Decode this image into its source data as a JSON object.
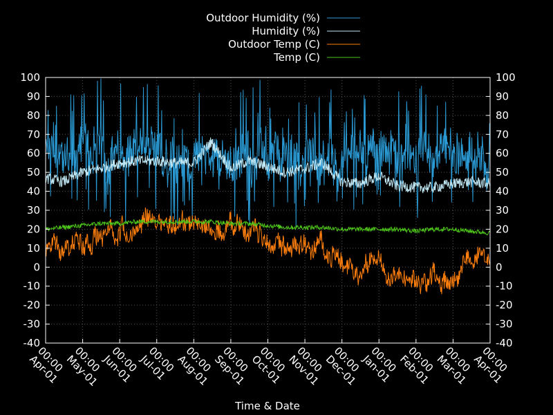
{
  "chart_data": {
    "type": "line",
    "xlabel": "Time & Date",
    "ylim": [
      -40,
      100
    ],
    "y_ticks": [
      -40,
      -30,
      -20,
      -10,
      0,
      10,
      20,
      30,
      40,
      50,
      60,
      70,
      80,
      90,
      100
    ],
    "y2_ticks": [
      -40,
      -30,
      -20,
      -10,
      0,
      10,
      20,
      30,
      40,
      50,
      60,
      70,
      80,
      90,
      100
    ],
    "x_ticks": [
      {
        "date": "Apr-01",
        "time": "00:00"
      },
      {
        "date": "May-01",
        "time": "00:00"
      },
      {
        "date": "Jun-01",
        "time": "00:00"
      },
      {
        "date": "Jul-01",
        "time": "00:00"
      },
      {
        "date": "Aug-01",
        "time": "00:00"
      },
      {
        "date": "Sep-01",
        "time": "00:00"
      },
      {
        "date": "Oct-01",
        "time": "00:00"
      },
      {
        "date": "Nov-01",
        "time": "00:00"
      },
      {
        "date": "Dec-01",
        "time": "00:00"
      },
      {
        "date": "Jan-01",
        "time": "00:00"
      },
      {
        "date": "Feb-01",
        "time": "00:00"
      },
      {
        "date": "Mar-01",
        "time": "00:00"
      },
      {
        "date": "Apr-01",
        "time": "00:00"
      }
    ],
    "grid": true,
    "legend_position": "top-center",
    "background": "#000000",
    "series": [
      {
        "name": "Outdoor Humidity (%)",
        "color": "#2b9bd6",
        "x": [
          "Apr-01",
          "Apr-15",
          "May-01",
          "May-15",
          "Jun-01",
          "Jun-15",
          "Jul-01",
          "Jul-15",
          "Aug-01",
          "Aug-15",
          "Sep-01",
          "Sep-15",
          "Oct-01",
          "Oct-15",
          "Nov-01",
          "Nov-15",
          "Dec-01",
          "Dec-15",
          "Jan-01",
          "Jan-15",
          "Feb-01",
          "Feb-15",
          "Mar-01",
          "Mar-15",
          "Apr-01"
        ],
        "values": [
          60,
          55,
          62,
          58,
          60,
          62,
          58,
          60,
          57,
          58,
          55,
          60,
          62,
          58,
          57,
          55,
          55,
          60,
          62,
          60,
          58,
          60,
          57,
          55,
          55
        ],
        "range": [
          [
            25,
            98
          ],
          [
            28,
            100
          ],
          [
            25,
            98
          ],
          [
            22,
            100
          ],
          [
            24,
            100
          ],
          [
            22,
            98
          ],
          [
            20,
            98
          ],
          [
            20,
            100
          ],
          [
            22,
            98
          ],
          [
            40,
            85
          ],
          [
            22,
            98
          ],
          [
            20,
            100
          ],
          [
            22,
            100
          ],
          [
            20,
            98
          ],
          [
            22,
            100
          ],
          [
            25,
            95
          ],
          [
            30,
            100
          ],
          [
            28,
            98
          ],
          [
            30,
            100
          ],
          [
            28,
            95
          ],
          [
            25,
            98
          ],
          [
            27,
            95
          ],
          [
            28,
            95
          ],
          [
            28,
            80
          ],
          [
            25,
            80
          ]
        ]
      },
      {
        "name": "Humidity (%)",
        "color": "#bfe6f2",
        "x": [
          "Apr-01",
          "Apr-15",
          "May-01",
          "May-15",
          "Jun-01",
          "Jun-15",
          "Jul-01",
          "Jul-15",
          "Aug-01",
          "Aug-15",
          "Sep-01",
          "Sep-15",
          "Oct-01",
          "Oct-15",
          "Nov-01",
          "Nov-15",
          "Dec-01",
          "Dec-15",
          "Jan-01",
          "Jan-15",
          "Feb-01",
          "Feb-15",
          "Mar-01",
          "Mar-15",
          "Apr-01"
        ],
        "values": [
          47,
          45,
          50,
          52,
          55,
          56,
          56,
          55,
          55,
          66,
          52,
          56,
          53,
          50,
          52,
          55,
          45,
          44,
          48,
          43,
          42,
          42,
          44,
          45,
          44
        ]
      },
      {
        "name": "Outdoor Temp (C)",
        "color": "#ff7f0e",
        "x": [
          "Apr-01",
          "Apr-15",
          "May-01",
          "May-15",
          "Jun-01",
          "Jun-15",
          "Jul-01",
          "Jul-15",
          "Aug-01",
          "Aug-15",
          "Sep-01",
          "Sep-15",
          "Oct-01",
          "Oct-15",
          "Nov-01",
          "Nov-15",
          "Dec-01",
          "Dec-15",
          "Jan-01",
          "Jan-15",
          "Feb-01",
          "Feb-15",
          "Mar-01",
          "Mar-15",
          "Apr-01"
        ],
        "values": [
          8,
          14,
          14,
          18,
          19,
          22,
          24,
          23,
          24,
          20,
          22,
          19,
          15,
          12,
          11,
          10,
          2,
          -2,
          3,
          -6,
          -10,
          -5,
          -5,
          3,
          8
        ],
        "range": [
          [
            0,
            22
          ],
          [
            2,
            25
          ],
          [
            5,
            28
          ],
          [
            8,
            30
          ],
          [
            10,
            32
          ],
          [
            15,
            35
          ],
          [
            14,
            32
          ],
          [
            15,
            32
          ],
          [
            15,
            33
          ],
          [
            15,
            25
          ],
          [
            12,
            32
          ],
          [
            10,
            30
          ],
          [
            8,
            28
          ],
          [
            5,
            25
          ],
          [
            2,
            20
          ],
          [
            0,
            20
          ],
          [
            -10,
            10
          ],
          [
            -15,
            10
          ],
          [
            -8,
            12
          ],
          [
            -20,
            8
          ],
          [
            -22,
            5
          ],
          [
            -18,
            10
          ],
          [
            -20,
            8
          ],
          [
            -5,
            22
          ],
          [
            0,
            18
          ]
        ]
      },
      {
        "name": "Temp (C)",
        "color": "#4ec71a",
        "x": [
          "Apr-01",
          "Apr-15",
          "May-01",
          "May-15",
          "Jun-01",
          "Jun-15",
          "Jul-01",
          "Jul-15",
          "Aug-01",
          "Aug-15",
          "Sep-01",
          "Sep-15",
          "Oct-01",
          "Oct-15",
          "Nov-01",
          "Nov-15",
          "Dec-01",
          "Dec-15",
          "Jan-01",
          "Jan-15",
          "Feb-01",
          "Feb-15",
          "Mar-01",
          "Mar-15",
          "Apr-01"
        ],
        "values": [
          20,
          21,
          22,
          23,
          23,
          24,
          24,
          24,
          24,
          24,
          23,
          23,
          22,
          21,
          21,
          21,
          20,
          20,
          20,
          20,
          19,
          20,
          20,
          19,
          18
        ]
      }
    ]
  }
}
